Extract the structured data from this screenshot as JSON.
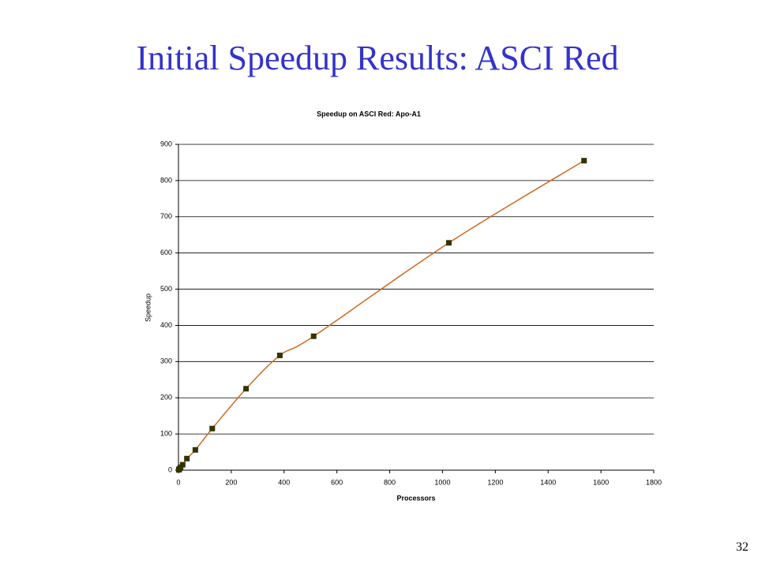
{
  "slide": {
    "title": "Initial Speedup Results: ASCI Red",
    "page_number": "32"
  },
  "chart_data": {
    "type": "line",
    "title": "Speedup on ASCI Red: Apo-A1",
    "x_label": "Processors",
    "y_label": "Speedup",
    "series": [
      {
        "name": "Speedup",
        "color": "#d2691e",
        "marker_color": "#333300",
        "x": [
          1,
          2,
          4,
          8,
          16,
          32,
          64,
          128,
          256,
          384,
          512,
          1024,
          1536
        ],
        "values": [
          1,
          2,
          4,
          8,
          15,
          32,
          56,
          115,
          225,
          317,
          370,
          628,
          855
        ]
      }
    ],
    "xlim": [
      0,
      1800
    ],
    "xticks": [
      0,
      200,
      400,
      600,
      800,
      1000,
      1200,
      1400,
      1600,
      1800
    ],
    "ylim": [
      0,
      900
    ],
    "yticks": [
      0,
      100,
      200,
      300,
      400,
      500,
      600,
      700,
      800,
      900
    ],
    "grid": true
  }
}
